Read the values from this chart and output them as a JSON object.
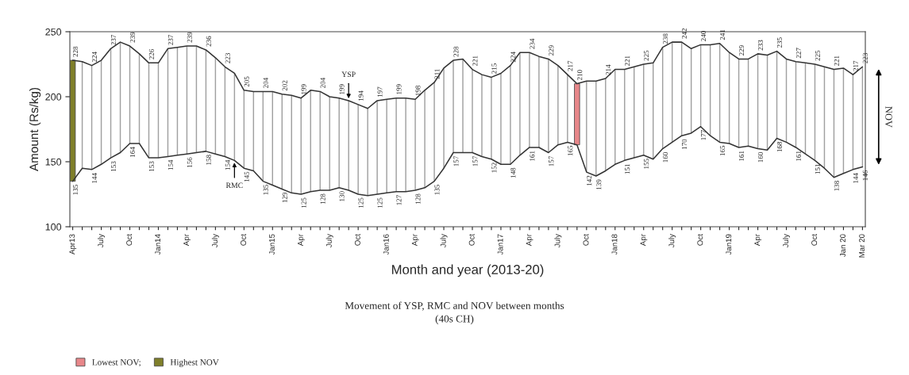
{
  "chart_data": {
    "type": "line",
    "xlabel": "Month and year (2013-20)",
    "ylabel": "Amount (Rs/kg)",
    "annotations": [
      "Movement of YSP, RMC and NOV between months\n(40s CH)"
    ],
    "categories": [
      "Apr13",
      null,
      null,
      "July",
      null,
      null,
      "Oct",
      null,
      null,
      "Jan14",
      null,
      null,
      "Apr",
      null,
      null,
      "July",
      null,
      null,
      "Oct",
      null,
      null,
      "Jan15",
      null,
      null,
      "Apr",
      null,
      null,
      "July",
      null,
      null,
      "Oct",
      null,
      null,
      "Jan16",
      null,
      null,
      "Apr",
      null,
      null,
      "July",
      null,
      null,
      "Oct",
      null,
      null,
      "Jan17",
      null,
      null,
      "Apr",
      null,
      null,
      "July",
      null,
      null,
      "Oct",
      null,
      null,
      "Jan18",
      null,
      null,
      "Apr",
      null,
      null,
      "July",
      null,
      null,
      "Oct",
      null,
      null,
      "Jan19",
      null,
      null,
      "Apr",
      null,
      null,
      "July",
      null,
      null,
      "Oct",
      null,
      null,
      "Jan 20",
      null,
      "Mar 20"
    ],
    "ylim": [
      100,
      250
    ],
    "yticks": [
      100,
      150,
      200,
      250
    ],
    "legend": "bottom left",
    "series": [
      {
        "name": "NOV",
        "type": "bar",
        "color": "#a0a0a0",
        "base": [
          null,
          145,
          144,
          148,
          153,
          157,
          164,
          164,
          153,
          153,
          154,
          155,
          156,
          157,
          158,
          156,
          154,
          151,
          145,
          143,
          135,
          132,
          129,
          126,
          125,
          127,
          128,
          128,
          130,
          128,
          125,
          124,
          125,
          126,
          127,
          127,
          128,
          130,
          135,
          145,
          157,
          157,
          157,
          154,
          152,
          148,
          148,
          155,
          161,
          161,
          157,
          163,
          165,
          null,
          142,
          139,
          143,
          148,
          151,
          153,
          155,
          152,
          160,
          165,
          170,
          172,
          177,
          170,
          165,
          164,
          161,
          162,
          160,
          159,
          168,
          165,
          161,
          156,
          151,
          145,
          138,
          141,
          144,
          146
        ],
        "values": [
          null,
          82,
          80,
          80,
          84,
          85,
          75,
          69,
          73,
          73,
          83,
          83,
          83,
          82,
          78,
          74,
          69,
          67,
          60,
          61,
          69,
          72,
          73,
          75,
          74,
          78,
          76,
          72,
          69,
          69,
          69,
          67,
          72,
          72,
          72,
          72,
          70,
          75,
          76,
          77,
          71,
          72,
          64,
          63,
          63,
          70,
          76,
          79,
          73,
          70,
          72,
          61,
          52,
          null,
          70,
          73,
          71,
          73,
          70,
          70,
          70,
          74,
          78,
          77,
          72,
          65,
          63,
          70,
          76,
          70,
          68,
          67,
          73,
          73,
          67,
          64,
          66,
          70,
          74,
          78,
          83,
          81,
          73,
          77
        ]
      },
      {
        "name": "Lowest NOV;",
        "type": "bar",
        "color": "#e8878a",
        "base": [
          null,
          null,
          null,
          null,
          null,
          null,
          null,
          null,
          null,
          null,
          null,
          null,
          null,
          null,
          null,
          null,
          null,
          null,
          null,
          null,
          null,
          null,
          null,
          null,
          null,
          null,
          null,
          null,
          null,
          null,
          null,
          null,
          null,
          null,
          null,
          null,
          null,
          null,
          null,
          null,
          null,
          null,
          null,
          null,
          null,
          null,
          null,
          null,
          null,
          null,
          null,
          null,
          null,
          163,
          null,
          null,
          null,
          null,
          null,
          null,
          null,
          null,
          null,
          null,
          null,
          null,
          null,
          null,
          null,
          null,
          null,
          null,
          null,
          null,
          null,
          null,
          null,
          null,
          null,
          null,
          null,
          null,
          null,
          null
        ],
        "values": [
          null,
          null,
          null,
          null,
          null,
          null,
          null,
          null,
          null,
          null,
          null,
          null,
          null,
          null,
          null,
          null,
          null,
          null,
          null,
          null,
          null,
          null,
          null,
          null,
          null,
          null,
          null,
          null,
          null,
          null,
          null,
          null,
          null,
          null,
          null,
          null,
          null,
          null,
          null,
          null,
          null,
          null,
          null,
          null,
          null,
          null,
          null,
          null,
          null,
          null,
          null,
          null,
          null,
          47,
          null,
          null,
          null,
          null,
          null,
          null,
          null,
          null,
          null,
          null,
          null,
          null,
          null,
          null,
          null,
          null,
          null,
          null,
          null,
          null,
          null,
          null,
          null,
          null,
          null,
          null,
          null,
          null,
          null,
          null
        ]
      },
      {
        "name": "Highest NOV",
        "type": "bar",
        "color": "#7f7f2a",
        "base": [
          135,
          null,
          null,
          null,
          null,
          null,
          null,
          null,
          null,
          null,
          null,
          null,
          null,
          null,
          null,
          null,
          null,
          null,
          null,
          null,
          null,
          null,
          null,
          null,
          null,
          null,
          null,
          null,
          null,
          null,
          null,
          null,
          null,
          null,
          null,
          null,
          null,
          null,
          null,
          null,
          null,
          null,
          null,
          null,
          null,
          null,
          null,
          null,
          null,
          null,
          null,
          null,
          null,
          null,
          null,
          null,
          null,
          null,
          null,
          null,
          null,
          null,
          null,
          null,
          null,
          null,
          null,
          null,
          null,
          null,
          null,
          null,
          null,
          null,
          null,
          null,
          null,
          null,
          null,
          null,
          null,
          null,
          null,
          null
        ],
        "values": [
          93,
          null,
          null,
          null,
          null,
          null,
          null,
          null,
          null,
          null,
          null,
          null,
          null,
          null,
          null,
          null,
          null,
          null,
          null,
          null,
          null,
          null,
          null,
          null,
          null,
          null,
          null,
          null,
          null,
          null,
          null,
          null,
          null,
          null,
          null,
          null,
          null,
          null,
          null,
          null,
          null,
          null,
          null,
          null,
          null,
          null,
          null,
          null,
          null,
          null,
          null,
          null,
          null,
          null,
          null,
          null,
          null,
          null,
          null,
          null,
          null,
          null,
          null,
          null,
          null,
          null,
          null,
          null,
          null,
          null,
          null,
          null,
          null,
          null,
          null,
          null,
          null,
          null,
          null,
          null,
          null,
          null,
          null,
          null
        ]
      },
      {
        "name": "YSP",
        "color": "#333333",
        "values": [
          228,
          227,
          224,
          228,
          237,
          242,
          239,
          233,
          226,
          226,
          237,
          238,
          239,
          239,
          236,
          230,
          223,
          218,
          205,
          204,
          204,
          204,
          202,
          201,
          199,
          205,
          204,
          200,
          199,
          197,
          194,
          191,
          197,
          198,
          199,
          199,
          198,
          205,
          211,
          222,
          228,
          229,
          221,
          217,
          215,
          218,
          224,
          234,
          234,
          231,
          229,
          224,
          217,
          210,
          212,
          212,
          214,
          221,
          221,
          223,
          225,
          226,
          238,
          242,
          242,
          237,
          240,
          240,
          241,
          234,
          229,
          229,
          233,
          232,
          235,
          229,
          227,
          226,
          225,
          223,
          221,
          222,
          217,
          223
        ],
        "value_labels": [
          "228",
          null,
          "224",
          null,
          "237",
          null,
          "239",
          null,
          "226",
          null,
          "237",
          null,
          "239",
          null,
          "236",
          null,
          "223",
          null,
          "205",
          null,
          "204",
          null,
          "202",
          null,
          "199",
          null,
          "204",
          null,
          "199",
          null,
          "194",
          null,
          "197",
          null,
          "199",
          null,
          "198",
          null,
          "211",
          null,
          "228",
          null,
          "221",
          null,
          "215",
          null,
          "224",
          null,
          "234",
          null,
          "229",
          null,
          "217",
          "210",
          null,
          null,
          "214",
          null,
          "221",
          null,
          "225",
          null,
          "238",
          null,
          "242",
          null,
          "240",
          null,
          "241",
          null,
          "229",
          null,
          "233",
          null,
          "235",
          null,
          "227",
          null,
          "225",
          null,
          "221",
          null,
          "217",
          "223"
        ]
      },
      {
        "name": "RMC",
        "color": "#333333",
        "values": [
          135,
          145,
          144,
          148,
          153,
          157,
          164,
          164,
          153,
          153,
          154,
          155,
          156,
          157,
          158,
          156,
          154,
          151,
          145,
          143,
          135,
          132,
          129,
          126,
          125,
          127,
          128,
          128,
          130,
          128,
          125,
          124,
          125,
          126,
          127,
          127,
          128,
          130,
          135,
          145,
          157,
          157,
          157,
          154,
          152,
          148,
          148,
          155,
          161,
          161,
          157,
          163,
          165,
          163,
          142,
          139,
          143,
          148,
          151,
          153,
          155,
          152,
          160,
          165,
          170,
          172,
          177,
          170,
          165,
          164,
          161,
          162,
          160,
          159,
          168,
          165,
          161,
          156,
          151,
          145,
          138,
          141,
          144,
          146
        ],
        "value_labels": [
          "135",
          null,
          "144",
          null,
          "153",
          null,
          "164",
          null,
          "153",
          null,
          "154",
          null,
          "156",
          null,
          "158",
          null,
          "154",
          null,
          "145",
          null,
          "135",
          null,
          "129",
          null,
          "125",
          null,
          "128",
          null,
          "130",
          null,
          "125",
          null,
          "125",
          null,
          "127",
          null,
          "128",
          null,
          "135",
          null,
          "157",
          null,
          "157",
          null,
          "152",
          null,
          "148",
          null,
          "161",
          null,
          "157",
          null,
          "165",
          null,
          "142",
          "139",
          null,
          null,
          "151",
          null,
          "155",
          null,
          "160",
          null,
          "170",
          null,
          "177",
          null,
          "165",
          null,
          "161",
          null,
          "160",
          null,
          "168",
          null,
          "161",
          null,
          "151",
          null,
          "138",
          null,
          "144",
          "146"
        ]
      }
    ]
  }
}
